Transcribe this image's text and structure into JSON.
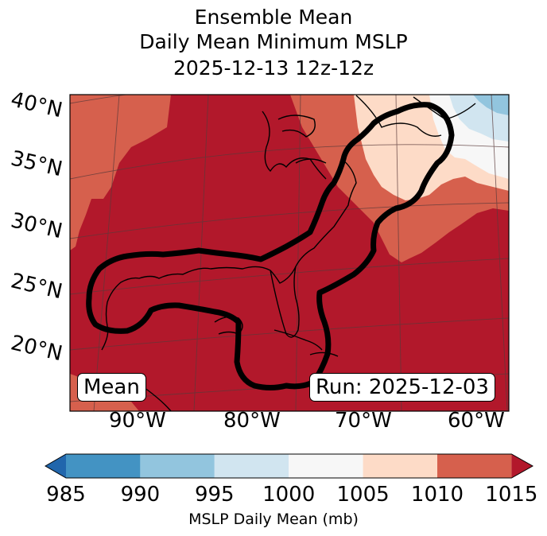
{
  "title": {
    "line1": "Ensemble Mean",
    "line2": "Daily Mean Minimum MSLP",
    "line3": "2025-12-13 12z-12z"
  },
  "map": {
    "lat_labels": [
      "40°N",
      "35°N",
      "30°N",
      "25°N",
      "20°N"
    ],
    "lon_labels": [
      "90°W",
      "80°W",
      "70°W",
      "60°W"
    ],
    "mean_badge": "Mean",
    "run_badge": "Run: 2025-12-03",
    "fill_colors": {
      "ge_1015": "#b2182b",
      "1010_1015": "#d6604d",
      "1005_1010": "#fddbc7",
      "1000_1005": "#f7f7f7",
      "995_1000": "#d1e5f0",
      "990_995": "#92c5de",
      "985_990": "#4393c3",
      "lt_985": "#2166ac"
    },
    "contour_color": "#000000"
  },
  "colorbar": {
    "label": "MSLP Daily Mean (mb)",
    "ticks": [
      "985",
      "990",
      "995",
      "1000",
      "1005",
      "1010",
      "1015"
    ],
    "colors": [
      "#2166ac",
      "#4393c3",
      "#92c5de",
      "#d1e5f0",
      "#f7f7f7",
      "#fddbc7",
      "#d6604d",
      "#b2182b"
    ]
  }
}
